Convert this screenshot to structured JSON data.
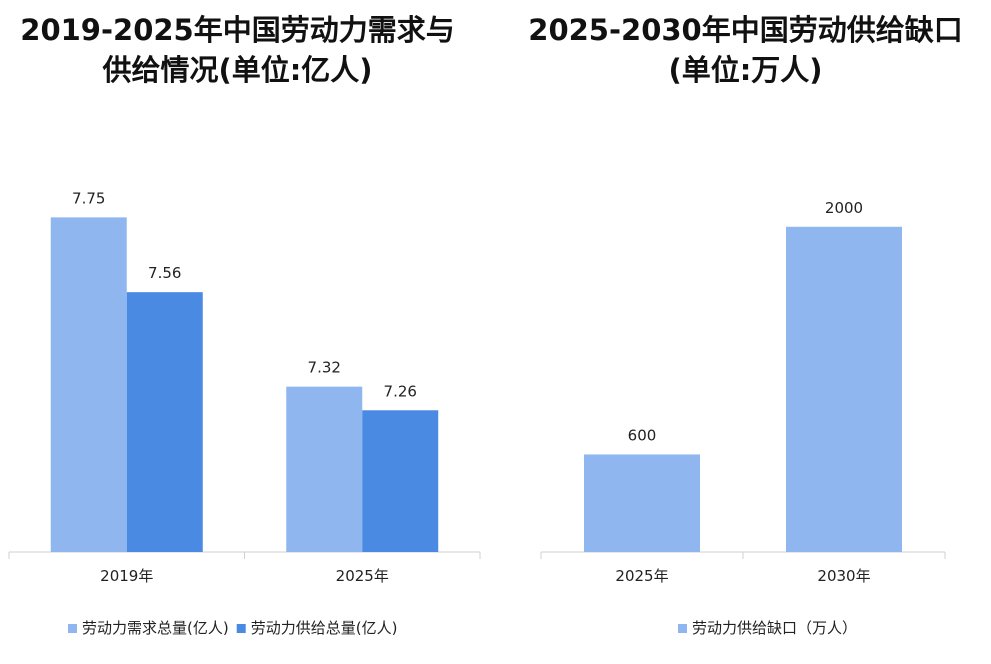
{
  "charts": {
    "left": {
      "title_line1": "2019-2025年中国劳动力需求与",
      "title_line2": "供给情况(单位:亿人)"
    },
    "right": {
      "title_line1": "2025-2030年中国劳动供给缺口",
      "title_line2": "(单位:万人)"
    }
  },
  "chart_data": [
    {
      "type": "bar",
      "title": "2019-2025年中国劳动力需求与供给情况(单位:亿人)",
      "categories": [
        "2019年",
        "2025年"
      ],
      "series": [
        {
          "name": "劳动力需求总量(亿人)",
          "values": [
            7.75,
            7.32
          ],
          "labels": [
            "7.75",
            "7.32"
          ],
          "color": "#8fb6ee"
        },
        {
          "name": "劳动力供给总量(亿人)",
          "values": [
            7.56,
            7.26
          ],
          "labels": [
            "7.56",
            "7.26"
          ],
          "color": "#4a8ae3"
        }
      ],
      "ylim": [
        6.9,
        7.85
      ],
      "grid": false,
      "legend": "bottom"
    },
    {
      "type": "bar",
      "title": "2025-2030年中国劳动供给缺口(单位:万人)",
      "categories": [
        "2025年",
        "2030年"
      ],
      "series": [
        {
          "name": "劳动力供给缺口（万人）",
          "values": [
            600,
            2000
          ],
          "labels": [
            "600",
            "2000"
          ],
          "color": "#8fb6ee"
        }
      ],
      "ylim": [
        0,
        2300
      ],
      "grid": false,
      "legend": "bottom"
    }
  ]
}
